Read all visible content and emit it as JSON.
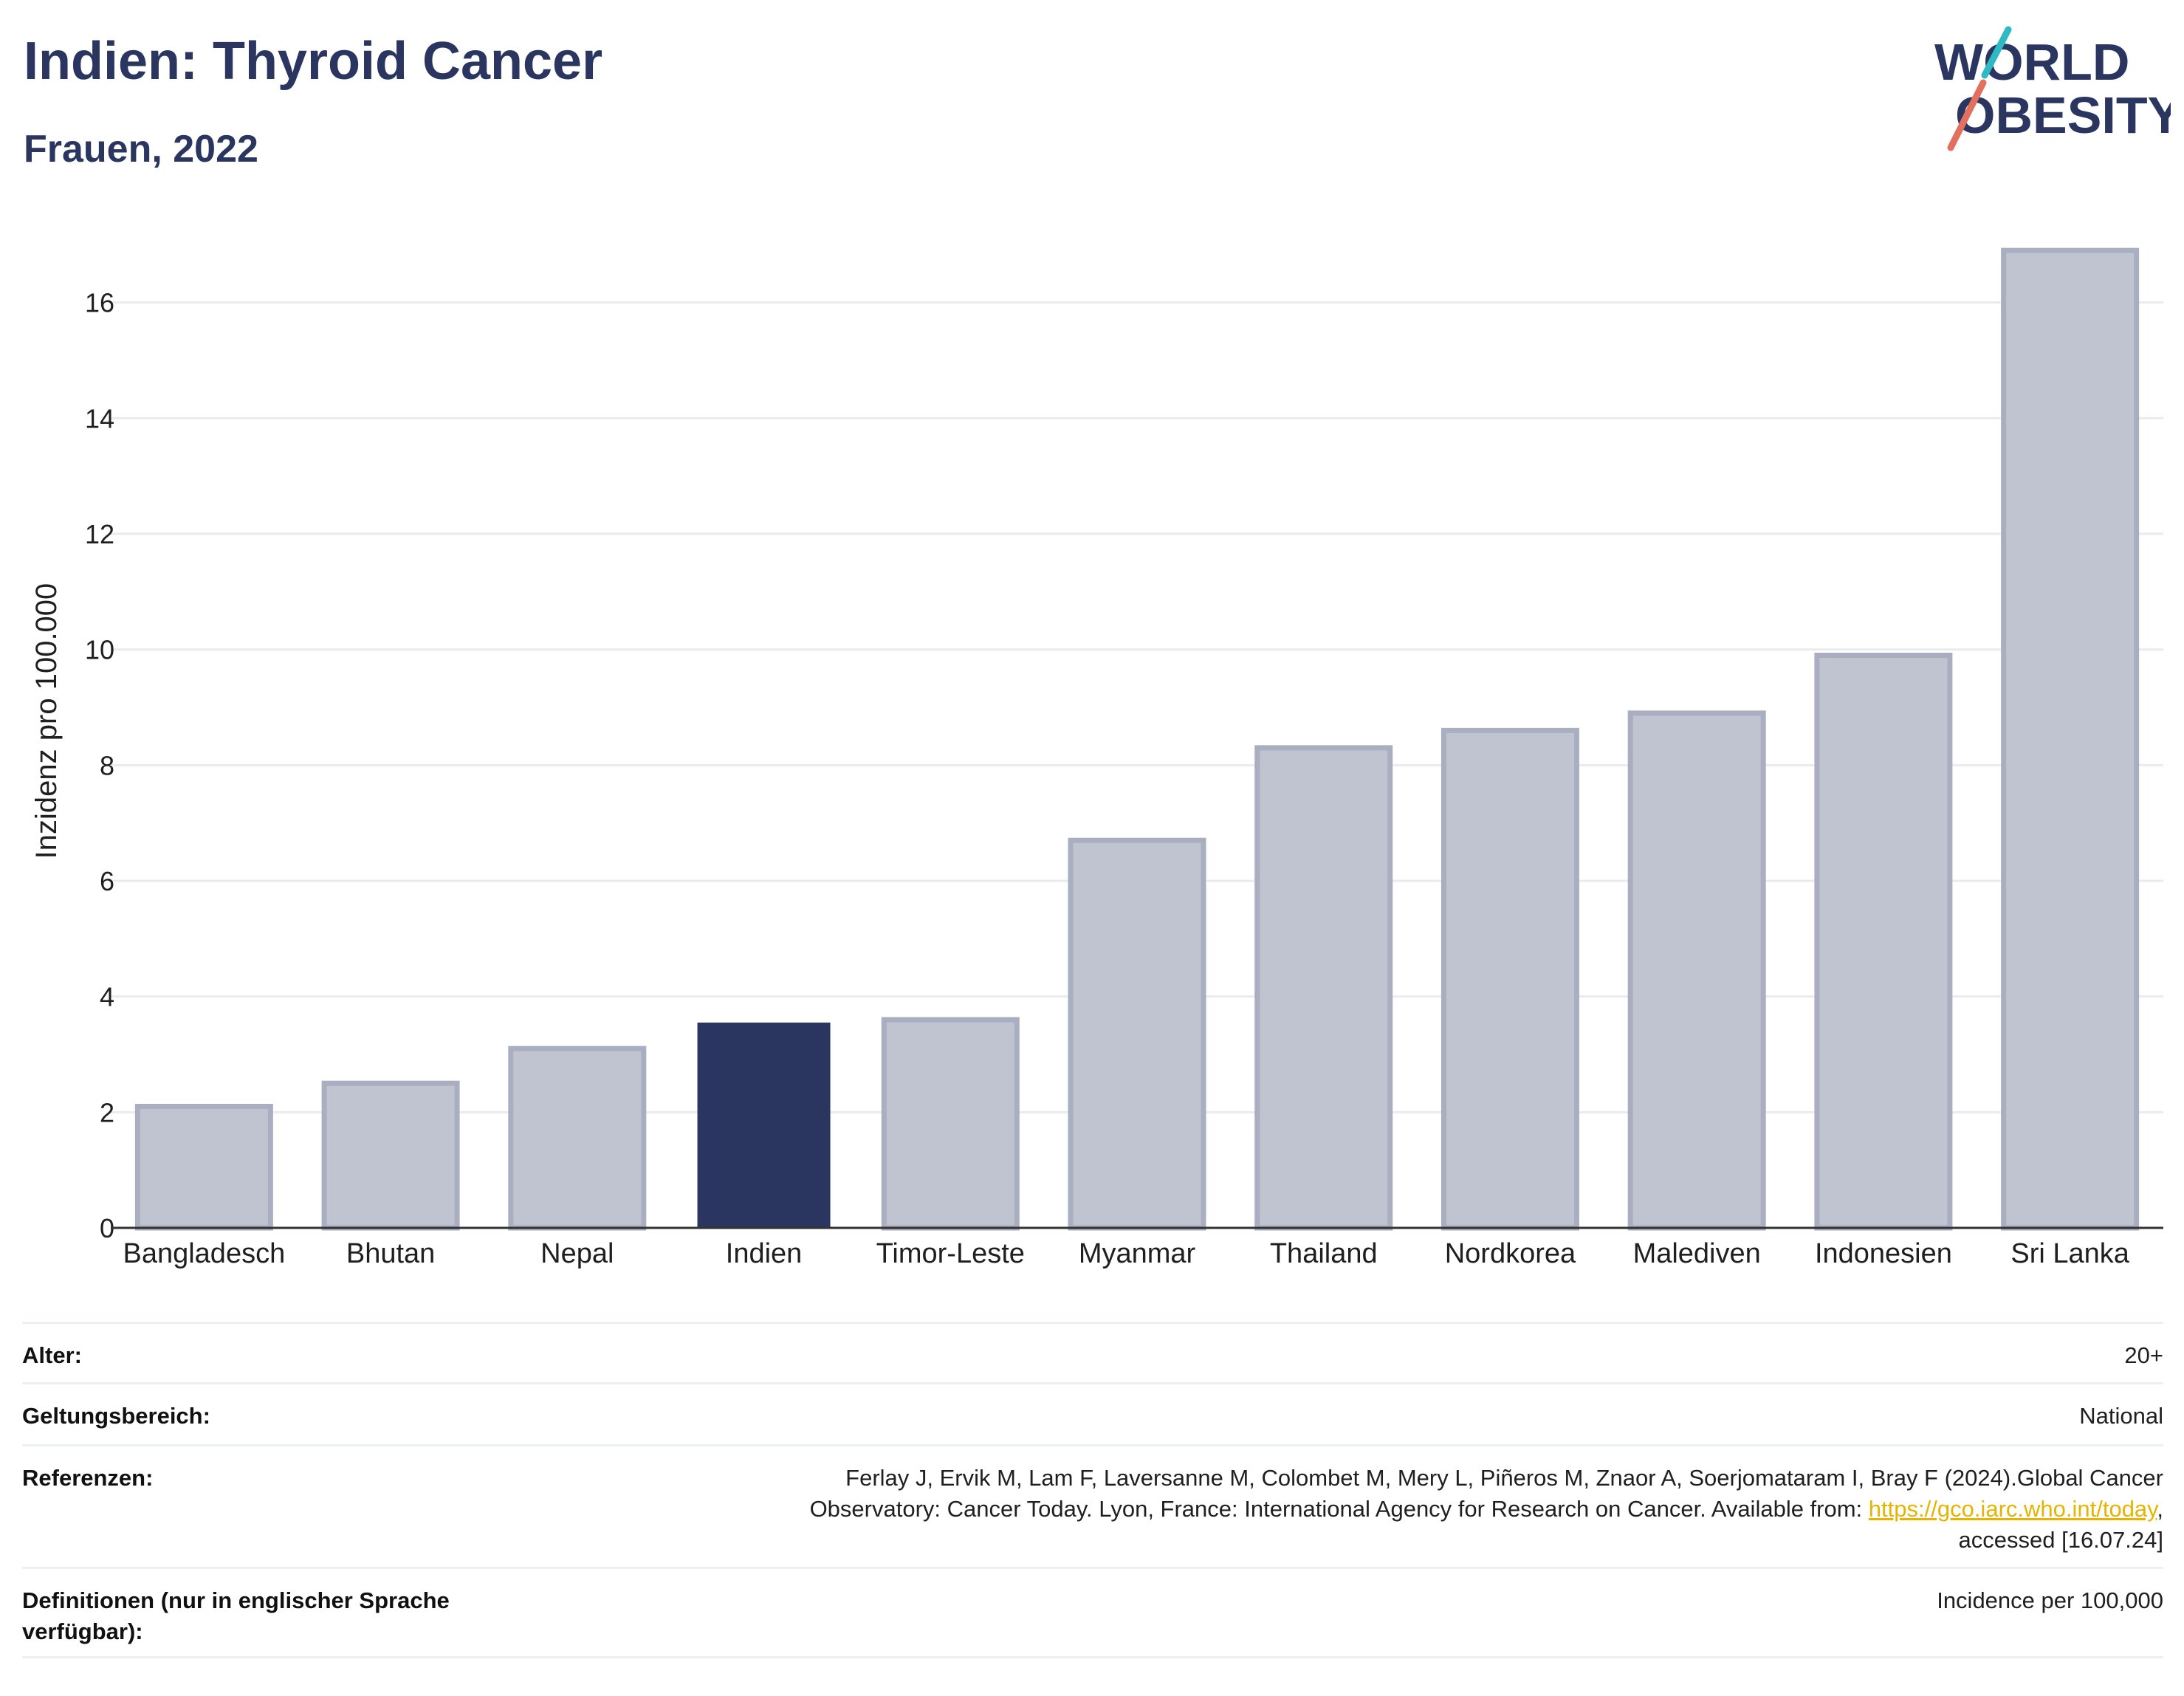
{
  "header": {
    "title": "Indien: Thyroid Cancer",
    "subtitle": "Frauen, 2022"
  },
  "logo": {
    "line1": "WORLD",
    "line2": "OBESITY",
    "name": "world-obesity-logo"
  },
  "chart_data": {
    "type": "bar",
    "ylabel": "Inzidenz pro 100.000",
    "xlabel": "",
    "ylim": [
      0,
      17.4
    ],
    "yticks": [
      0,
      2,
      4,
      6,
      8,
      10,
      12,
      14,
      16
    ],
    "grid": true,
    "categories": [
      "Bangladesch",
      "Bhutan",
      "Nepal",
      "Indien",
      "Timor-Leste",
      "Myanmar",
      "Thailand",
      "Nordkorea",
      "Malediven",
      "Indonesien",
      "Sri Lanka"
    ],
    "values": [
      2.1,
      2.5,
      3.1,
      3.55,
      3.6,
      6.7,
      8.3,
      8.6,
      8.9,
      9.9,
      16.9
    ],
    "highlight": "Indien",
    "colors": {
      "bar": "#c0c4d0",
      "bar_border": "#a9aec0",
      "highlight": "#2a3560"
    }
  },
  "meta": {
    "age_label": "Alter:",
    "age_value": "20+",
    "scope_label": "Geltungsbereich:",
    "scope_value": "National",
    "refs_label": "Referenzen:",
    "refs_line1": "Ferlay J, Ervik M, Lam F, Laversanne M, Colombet M, Mery L, Piñeros M, Znaor A, Soerjomataram I, Bray F (2024).Global Cancer",
    "refs_line2": "Observatory: Cancer Today. Lyon, France: International Agency for Research on Cancer. Available from: ",
    "refs_link": "https://gco.iarc.who.int/today",
    "refs_line2_end": ",",
    "refs_line3": "accessed [16.07.24]",
    "def_label_1": "Definitionen (nur in englischer Sprache",
    "def_label_2": "verfügbar):",
    "def_value": "Incidence per 100,000"
  }
}
